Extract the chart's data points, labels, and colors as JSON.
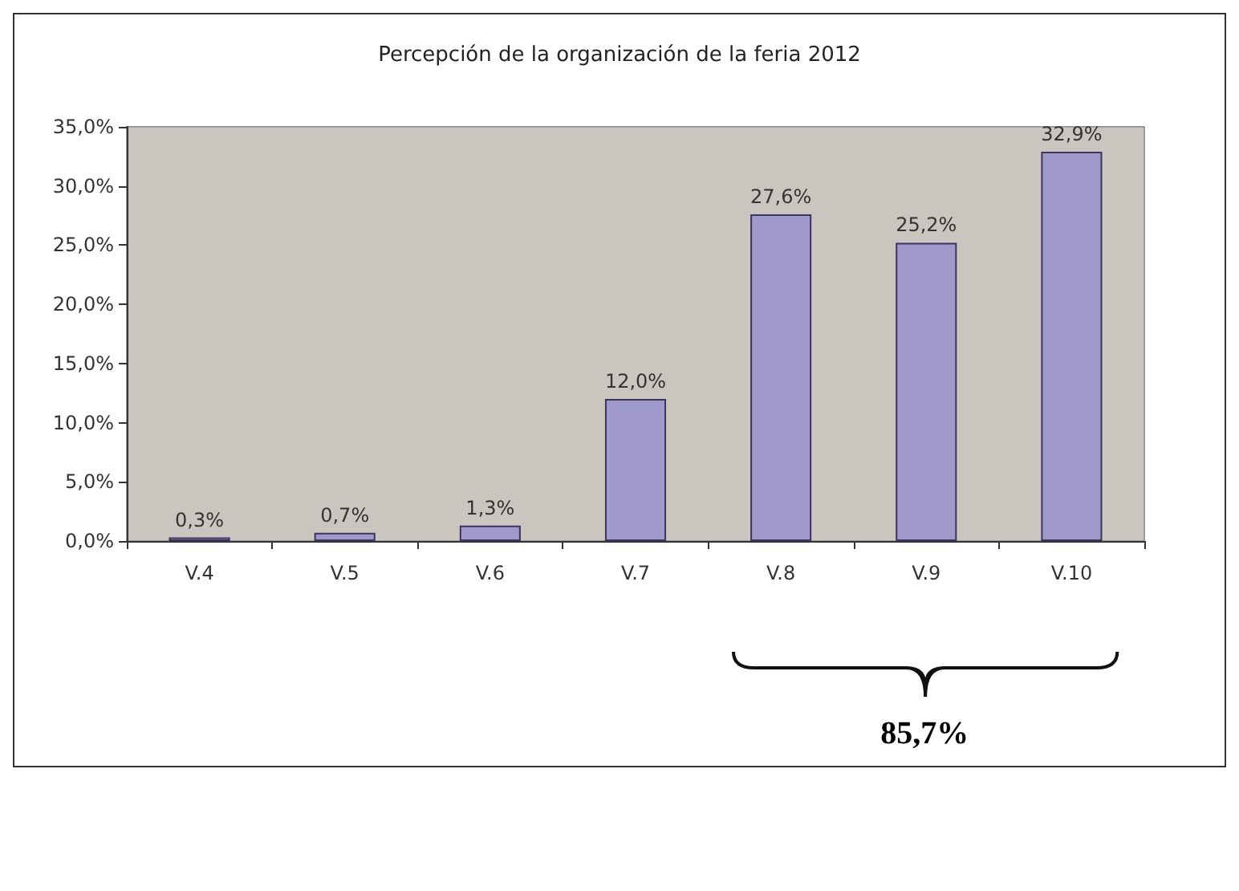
{
  "chart_data": {
    "type": "bar",
    "title": "Percepción de la organización de la feria 2012",
    "categories": [
      "V.4",
      "V.5",
      "V.6",
      "V.7",
      "V.8",
      "V.9",
      "V.10"
    ],
    "values": [
      0.3,
      0.7,
      1.3,
      12.0,
      27.6,
      25.2,
      32.9
    ],
    "value_labels": [
      "0,3%",
      "0,7%",
      "1,3%",
      "12,0%",
      "27,6%",
      "25,2%",
      "32,9%"
    ],
    "color": "#a09acb",
    "ylim": [
      0,
      35
    ],
    "yticks": [
      {
        "value": 0,
        "label": "0,0%"
      },
      {
        "value": 5,
        "label": "5,0%"
      },
      {
        "value": 10,
        "label": "10,0%"
      },
      {
        "value": 15,
        "label": "15,0%"
      },
      {
        "value": 20,
        "label": "20,0%"
      },
      {
        "value": 25,
        "label": "25,0%"
      },
      {
        "value": 30,
        "label": "30,0%"
      },
      {
        "value": 35,
        "label": "35,0%"
      }
    ],
    "grid": false,
    "annotations": [
      "85,7%"
    ]
  }
}
